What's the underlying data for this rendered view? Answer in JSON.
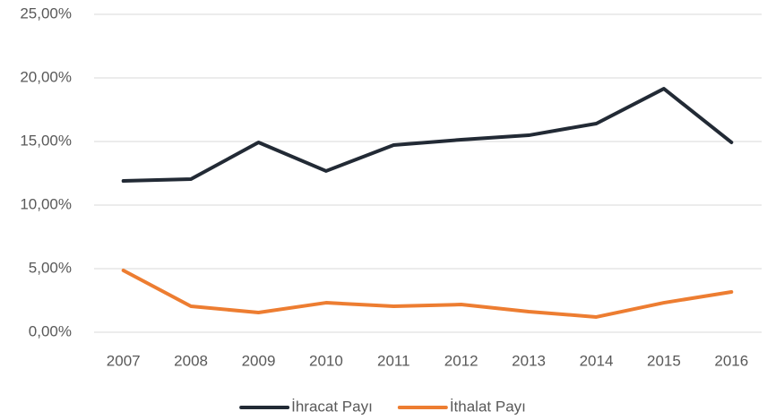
{
  "chart_data": {
    "type": "line",
    "categories": [
      "2007",
      "2008",
      "2009",
      "2010",
      "2011",
      "2012",
      "2013",
      "2014",
      "2015",
      "2016"
    ],
    "series": [
      {
        "name": "İhracat Payı",
        "color": "#222a35",
        "values": [
          11.9,
          12.04,
          14.93,
          12.68,
          14.72,
          15.14,
          15.49,
          16.41,
          19.15,
          14.93
        ]
      },
      {
        "name": "İthalat Payı",
        "color": "#ed7d31",
        "values": [
          4.86,
          2.04,
          1.55,
          2.32,
          2.04,
          2.18,
          1.62,
          1.2,
          2.32,
          3.17
        ]
      }
    ],
    "ylim": [
      0,
      25
    ],
    "yticks": [
      {
        "value": 0,
        "label": "0,00%"
      },
      {
        "value": 5,
        "label": "5,00%"
      },
      {
        "value": 10,
        "label": "10,00%"
      },
      {
        "value": 15,
        "label": "15,00%"
      },
      {
        "value": 20,
        "label": "20,00%"
      },
      {
        "value": 25,
        "label": "25,00%"
      }
    ],
    "grid": true,
    "legend": "bottom"
  }
}
